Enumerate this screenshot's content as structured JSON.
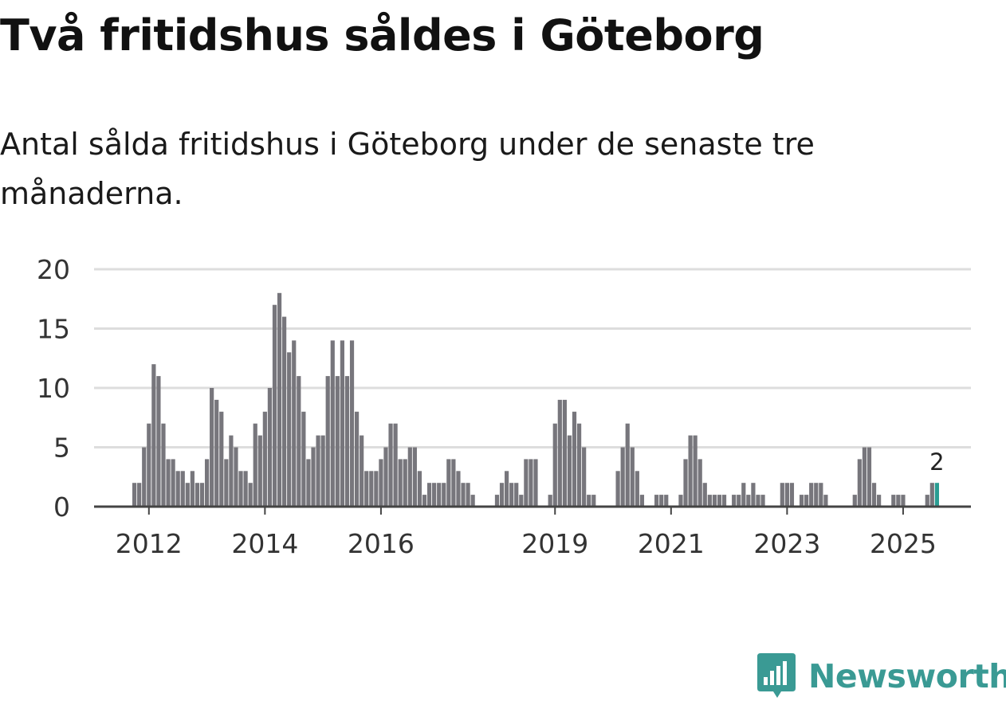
{
  "title": "Två fritidshus såldes i Göteborg",
  "subtitle": "Antal sålda fritidshus i Göteborg under de senaste tre månaderna.",
  "brand": "Newsworthy",
  "colors": {
    "bar": "#77767c",
    "highlight": "#2a9d93",
    "grid": "#dddddd",
    "axis": "#444444",
    "brand": "#3a9a94"
  },
  "chart_data": {
    "type": "bar",
    "title": "Två fritidshus såldes i Göteborg",
    "subtitle": "Antal sålda fritidshus i Göteborg under de senaste tre månaderna.",
    "xlabel": "",
    "ylabel": "",
    "ylim": [
      0,
      20
    ],
    "yticks": [
      0,
      5,
      10,
      15,
      20
    ],
    "grid": true,
    "frequency": "monthly",
    "start": "2011-10",
    "xticks": [
      "2012",
      "2014",
      "2016",
      "2019",
      "2021",
      "2023",
      "2025"
    ],
    "values": [
      2,
      2,
      5,
      7,
      12,
      11,
      7,
      4,
      4,
      3,
      3,
      2,
      3,
      2,
      2,
      4,
      10,
      9,
      8,
      4,
      6,
      5,
      3,
      3,
      2,
      7,
      6,
      8,
      10,
      17,
      18,
      16,
      13,
      14,
      11,
      8,
      4,
      5,
      6,
      6,
      11,
      14,
      11,
      14,
      11,
      14,
      8,
      6,
      3,
      3,
      3,
      4,
      5,
      7,
      7,
      4,
      4,
      5,
      5,
      3,
      1,
      2,
      2,
      2,
      2,
      4,
      4,
      3,
      2,
      2,
      1,
      0,
      0,
      0,
      0,
      1,
      2,
      3,
      2,
      2,
      1,
      4,
      4,
      4,
      0,
      0,
      1,
      7,
      9,
      9,
      6,
      8,
      7,
      5,
      1,
      1,
      0,
      0,
      0,
      0,
      3,
      5,
      7,
      5,
      3,
      1,
      0,
      0,
      1,
      1,
      1,
      0,
      0,
      1,
      4,
      6,
      6,
      4,
      2,
      1,
      1,
      1,
      1,
      0,
      1,
      1,
      2,
      1,
      2,
      1,
      1,
      0,
      0,
      0,
      2,
      2,
      2,
      0,
      1,
      1,
      2,
      2,
      2,
      1,
      0,
      0,
      0,
      0,
      0,
      1,
      4,
      5,
      5,
      2,
      1,
      0,
      0,
      1,
      1,
      1,
      0,
      0,
      0,
      0,
      1,
      2,
      2
    ],
    "highlight_last": true,
    "annotations": [
      {
        "label": "2",
        "target": "last"
      }
    ]
  }
}
